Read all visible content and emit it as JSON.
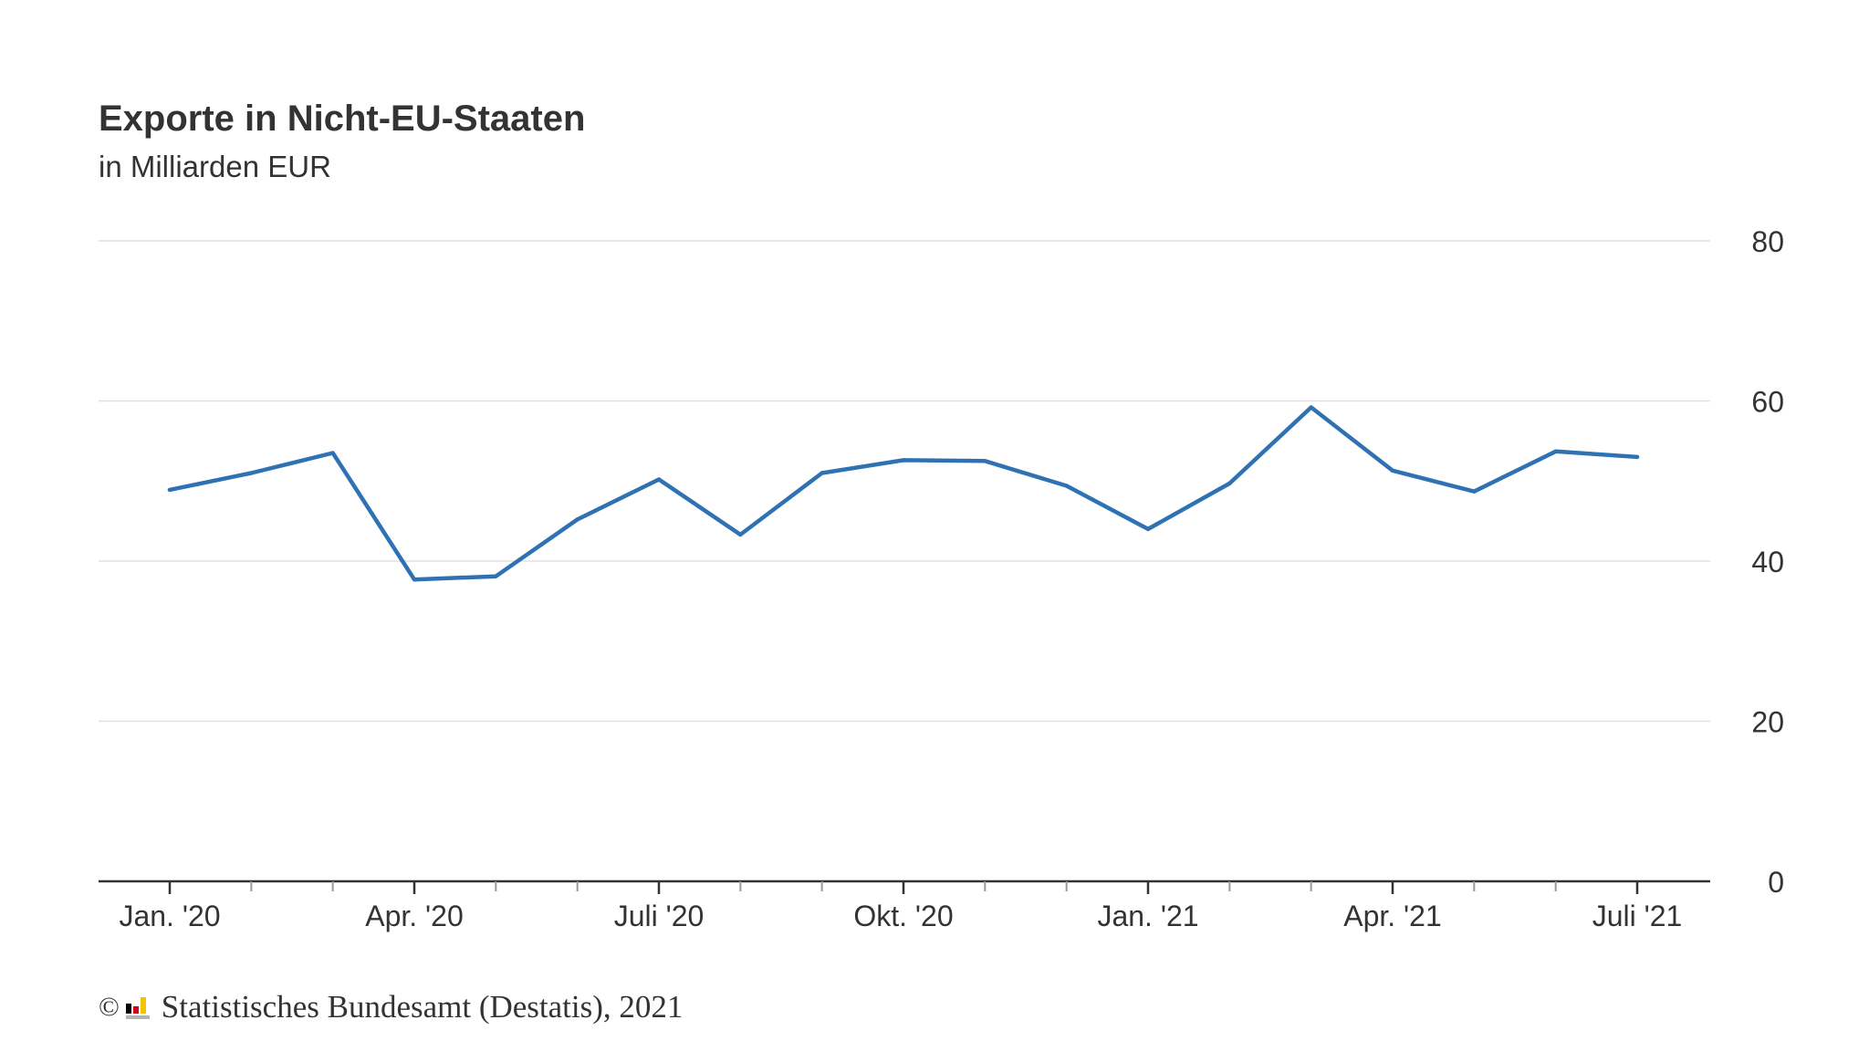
{
  "chart_data": {
    "type": "line",
    "title": "Exporte in Nicht-EU-Staaten",
    "subtitle": "in Milliarden EUR",
    "xlabel": "",
    "ylabel": "",
    "x": [
      "Jan. '20",
      "Feb. '20",
      "Mär. '20",
      "Apr. '20",
      "Mai '20",
      "Juni '20",
      "Juli '20",
      "Aug. '20",
      "Sep. '20",
      "Okt. '20",
      "Nov. '20",
      "Dez. '20",
      "Jan. '21",
      "Feb. '21",
      "Mär. '21",
      "Apr. '21",
      "Mai '21",
      "Juni '21",
      "Juli '21"
    ],
    "tick_labels": [
      "Jan. '20",
      "Apr. '20",
      "Juli '20",
      "Okt. '20",
      "Jan. '21",
      "Apr. '21",
      "Juli '21"
    ],
    "tick_label_indices": [
      0,
      3,
      6,
      9,
      12,
      15,
      18
    ],
    "series": [
      {
        "values": [
          48.9,
          51.0,
          53.5,
          37.7,
          38.1,
          45.2,
          50.2,
          43.3,
          51.0,
          52.6,
          52.5,
          49.4,
          44.0,
          49.7,
          59.2,
          51.3,
          48.7,
          53.7,
          53.0
        ],
        "color": "#2f72b4"
      }
    ],
    "y_ticks": [
      0,
      20,
      40,
      60,
      80
    ],
    "ylim": [
      0,
      80
    ],
    "grid": true,
    "y_axis_side": "right",
    "legend": "none"
  },
  "footer": {
    "copyright_symbol": "©",
    "source": "Statistisches Bundesamt (Destatis), 2021",
    "logo_icon": "destatis-logo-icon"
  },
  "colors": {
    "line": "#2f72b4",
    "grid": "#e0e0e0",
    "axis": "#333333",
    "text": "#333333"
  }
}
